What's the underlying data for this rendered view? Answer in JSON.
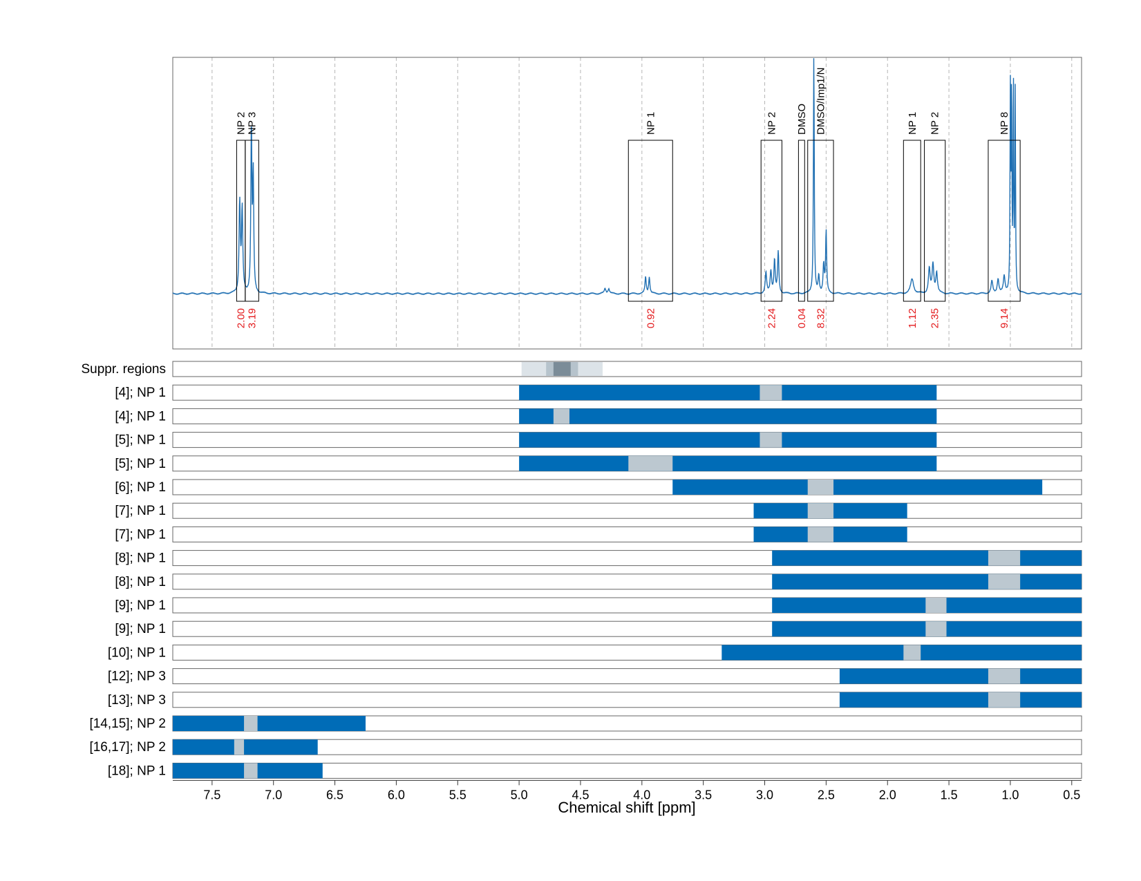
{
  "chart_data": {
    "type": "nmr-spectrum-with-region-bars",
    "xlabel": "Chemical shift [ppm]",
    "xlim": [
      7.82,
      0.42
    ],
    "x_ticks": [
      "7.5",
      "7.0",
      "6.5",
      "6.0",
      "5.5",
      "5.0",
      "4.5",
      "4.0",
      "3.5",
      "3.0",
      "2.5",
      "2.0",
      "1.5",
      "1.0",
      "0.5"
    ],
    "x_tick_values": [
      7.5,
      7.0,
      6.5,
      6.0,
      5.5,
      5.0,
      4.5,
      4.0,
      3.5,
      3.0,
      2.5,
      2.0,
      1.5,
      1.0,
      0.5
    ],
    "grid": "vertical dashed",
    "colors": {
      "spectrum": "#1f6fb2",
      "region": "#006cb7",
      "excluded": "#bcc8d0",
      "integral_label": "#e31a1c",
      "frame": "#666666"
    },
    "spectrum_peaks": [
      {
        "ppm": 7.275,
        "height": 0.22,
        "width": 0.006
      },
      {
        "ppm": 7.255,
        "height": 0.2,
        "width": 0.006
      },
      {
        "ppm": 7.18,
        "height": 0.4,
        "width": 0.005
      },
      {
        "ppm": 7.165,
        "height": 0.28,
        "width": 0.005
      },
      {
        "ppm": 4.3,
        "height": 0.012,
        "width": 0.008
      },
      {
        "ppm": 4.27,
        "height": 0.012,
        "width": 0.008
      },
      {
        "ppm": 3.97,
        "height": 0.04,
        "width": 0.006
      },
      {
        "ppm": 3.94,
        "height": 0.04,
        "width": 0.006
      },
      {
        "ppm": 2.99,
        "height": 0.05,
        "width": 0.007
      },
      {
        "ppm": 2.95,
        "height": 0.055,
        "width": 0.007
      },
      {
        "ppm": 2.92,
        "height": 0.08,
        "width": 0.006
      },
      {
        "ppm": 2.89,
        "height": 0.1,
        "width": 0.006
      },
      {
        "ppm": 2.6,
        "height": 0.58,
        "width": 0.004
      },
      {
        "ppm": 2.56,
        "height": 0.04,
        "width": 0.006
      },
      {
        "ppm": 2.52,
        "height": 0.07,
        "width": 0.006
      },
      {
        "ppm": 2.5,
        "height": 0.15,
        "width": 0.005
      },
      {
        "ppm": 1.8,
        "height": 0.035,
        "width": 0.015
      },
      {
        "ppm": 1.66,
        "height": 0.06,
        "width": 0.008
      },
      {
        "ppm": 1.63,
        "height": 0.07,
        "width": 0.008
      },
      {
        "ppm": 1.6,
        "height": 0.05,
        "width": 0.008
      },
      {
        "ppm": 1.15,
        "height": 0.03,
        "width": 0.008
      },
      {
        "ppm": 1.1,
        "height": 0.035,
        "width": 0.008
      },
      {
        "ppm": 1.05,
        "height": 0.04,
        "width": 0.008
      },
      {
        "ppm": 1.0,
        "height": 0.48,
        "width": 0.003
      },
      {
        "ppm": 0.99,
        "height": 0.5,
        "width": 0.003
      },
      {
        "ppm": 0.975,
        "height": 0.5,
        "width": 0.003
      },
      {
        "ppm": 0.96,
        "height": 0.48,
        "width": 0.003
      }
    ],
    "integral_boxes": [
      {
        "label": "NP 2",
        "integral": "2.00",
        "start": 7.3,
        "end": 7.23
      },
      {
        "label": "NP 3",
        "integral": "3.19",
        "start": 7.23,
        "end": 7.12
      },
      {
        "label": "NP 1",
        "integral": "0.92",
        "start": 4.11,
        "end": 3.75
      },
      {
        "label": "NP 2",
        "integral": "2.24",
        "start": 3.03,
        "end": 2.86
      },
      {
        "label": "DMSO",
        "integral": "0.04",
        "start": 2.725,
        "end": 2.675
      },
      {
        "label": "DMSO/Imp1/N",
        "integral": "8.32",
        "start": 2.65,
        "end": 2.44
      },
      {
        "label": "NP 1",
        "integral": "1.12",
        "start": 1.87,
        "end": 1.73
      },
      {
        "label": "NP 2",
        "integral": "2.35",
        "start": 1.7,
        "end": 1.53
      },
      {
        "label": "NP 8",
        "integral": "9.14",
        "start": 1.18,
        "end": 0.92
      }
    ],
    "suppression": {
      "label": "Suppr. regions",
      "bands": [
        {
          "start": 4.98,
          "end": 4.32,
          "shade": "#dce3e8"
        },
        {
          "start": 4.78,
          "end": 4.52,
          "shade": "#b6c3cc"
        },
        {
          "start": 4.72,
          "end": 4.58,
          "shade": "#7b8c98"
        }
      ]
    },
    "region_rows": [
      {
        "label": "[4]; NP 1",
        "start": 5.0,
        "end": 1.6,
        "exclusion": [
          3.04,
          2.86
        ]
      },
      {
        "label": "[4]; NP 1",
        "start": 5.0,
        "end": 1.6,
        "exclusion": [
          4.72,
          4.59
        ]
      },
      {
        "label": "[5]; NP 1",
        "start": 5.0,
        "end": 1.6,
        "exclusion": [
          3.04,
          2.86
        ]
      },
      {
        "label": "[5]; NP 1",
        "start": 5.0,
        "end": 1.6,
        "exclusion": [
          4.11,
          3.75
        ]
      },
      {
        "label": "[6]; NP 1",
        "start": 3.75,
        "end": 0.74,
        "exclusion": [
          2.65,
          2.44
        ]
      },
      {
        "label": "[7]; NP 1",
        "start": 3.09,
        "end": 1.84,
        "exclusion": [
          2.65,
          2.44
        ]
      },
      {
        "label": "[7]; NP 1",
        "start": 3.09,
        "end": 1.84,
        "exclusion": [
          2.65,
          2.44
        ]
      },
      {
        "label": "[8]; NP 1",
        "start": 2.94,
        "end": 0.42,
        "exclusion": [
          1.18,
          0.92
        ]
      },
      {
        "label": "[8]; NP 1",
        "start": 2.94,
        "end": 0.42,
        "exclusion": [
          1.18,
          0.92
        ]
      },
      {
        "label": "[9]; NP 1",
        "start": 2.94,
        "end": 0.42,
        "exclusion": [
          1.69,
          1.52
        ]
      },
      {
        "label": "[9]; NP 1",
        "start": 2.94,
        "end": 0.42,
        "exclusion": [
          1.69,
          1.52
        ]
      },
      {
        "label": "[10]; NP 1",
        "start": 3.35,
        "end": 0.42,
        "exclusion": [
          1.87,
          1.73
        ]
      },
      {
        "label": "[12]; NP 3",
        "start": 2.39,
        "end": 0.42,
        "exclusion": [
          1.18,
          0.92
        ]
      },
      {
        "label": "[13]; NP 3",
        "start": 2.39,
        "end": 0.42,
        "exclusion": [
          1.18,
          0.92
        ]
      },
      {
        "label": "[14,15]; NP 2",
        "start": 7.82,
        "end": 6.25,
        "exclusion": [
          7.24,
          7.13
        ]
      },
      {
        "label": "[16,17]; NP 2",
        "start": 7.82,
        "end": 6.64,
        "exclusion": [
          7.32,
          7.24
        ]
      },
      {
        "label": "[18]; NP 1",
        "start": 7.82,
        "end": 6.6,
        "exclusion": [
          7.24,
          7.13
        ]
      }
    ]
  }
}
